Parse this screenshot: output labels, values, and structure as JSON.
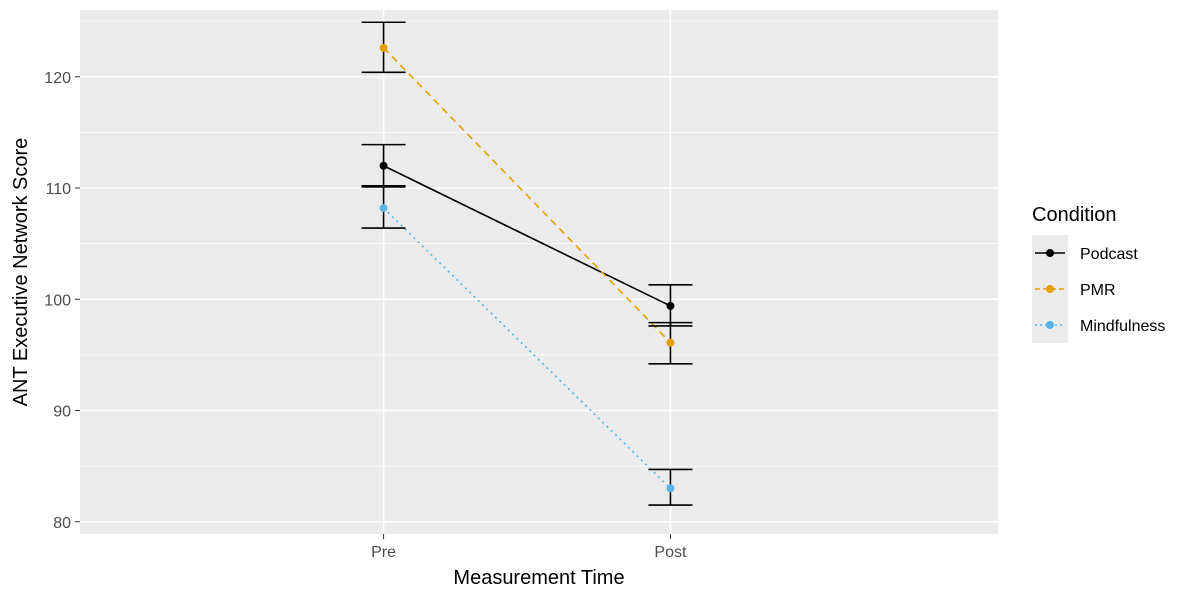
{
  "chart_data": {
    "type": "line",
    "title": "",
    "xlabel": "Measurement Time",
    "ylabel": "ANT Executive Network Score",
    "categories": [
      "Pre",
      "Post"
    ],
    "ylim": [
      78.9,
      126.0
    ],
    "yticks": [
      80,
      90,
      100,
      110,
      120
    ],
    "ytick_labels": [
      "80",
      "90",
      "100",
      "110",
      "120"
    ],
    "grid": true,
    "legend_title": "Condition",
    "legend_position": "right",
    "series": [
      {
        "name": "Podcast",
        "color": "#000000",
        "linestyle": "solid",
        "values": [
          112.0,
          99.4
        ],
        "error_low": [
          110.1,
          97.6
        ],
        "error_high": [
          113.9,
          101.3
        ]
      },
      {
        "name": "PMR",
        "color": "#E69F00",
        "linestyle": "dashed",
        "values": [
          122.6,
          96.1
        ],
        "error_low": [
          120.4,
          94.2
        ],
        "error_high": [
          124.9,
          97.9
        ]
      },
      {
        "name": "Mindfulness",
        "color": "#56B4E9",
        "linestyle": "dotted",
        "values": [
          108.2,
          83.0
        ],
        "error_low": [
          106.4,
          81.5
        ],
        "error_high": [
          110.2,
          84.7
        ]
      }
    ]
  }
}
